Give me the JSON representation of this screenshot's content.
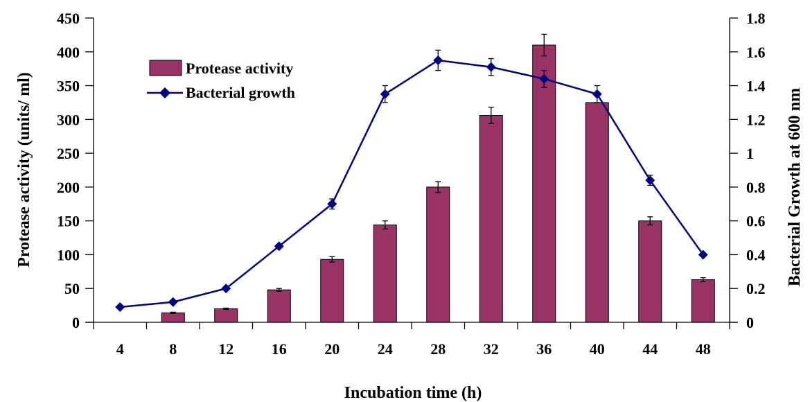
{
  "chart_data": {
    "type": "bar+line",
    "categories": [
      "4",
      "8",
      "12",
      "16",
      "20",
      "24",
      "28",
      "32",
      "36",
      "40",
      "44",
      "48"
    ],
    "series": [
      {
        "name": "Protease activity",
        "kind": "bar",
        "axis": "left",
        "color": "#993366",
        "values": [
          0,
          14,
          20,
          48,
          93,
          144,
          200,
          306,
          410,
          325,
          150,
          63
        ],
        "errors": [
          0,
          1,
          1,
          2,
          4,
          6,
          8,
          12,
          16,
          0,
          6,
          3
        ]
      },
      {
        "name": "Bacterial growth",
        "kind": "line",
        "axis": "right",
        "color": "#000080",
        "values": [
          0.09,
          0.12,
          0.2,
          0.45,
          0.7,
          1.35,
          1.55,
          1.51,
          1.44,
          1.35,
          0.84,
          0.4
        ],
        "errors": [
          0,
          0,
          0,
          0,
          0.03,
          0.05,
          0.06,
          0.05,
          0.05,
          0.05,
          0.03,
          0
        ]
      }
    ],
    "xlabel": "Incubation time (h)",
    "ylabel": "Protease activity (units/ ml)",
    "y2label": "Bacterial Growth at 600 nm",
    "ylim": [
      0,
      450
    ],
    "yticks": [
      "0",
      "50",
      "100",
      "150",
      "200",
      "250",
      "300",
      "350",
      "400",
      "450"
    ],
    "y2lim": [
      0,
      1.8
    ],
    "y2ticks": [
      "0",
      "0.2",
      "0.4",
      "0.6",
      "0.8",
      "1",
      "1.2",
      "1.4",
      "1.6",
      "1.8"
    ],
    "grid": false,
    "legend": "top-left"
  }
}
